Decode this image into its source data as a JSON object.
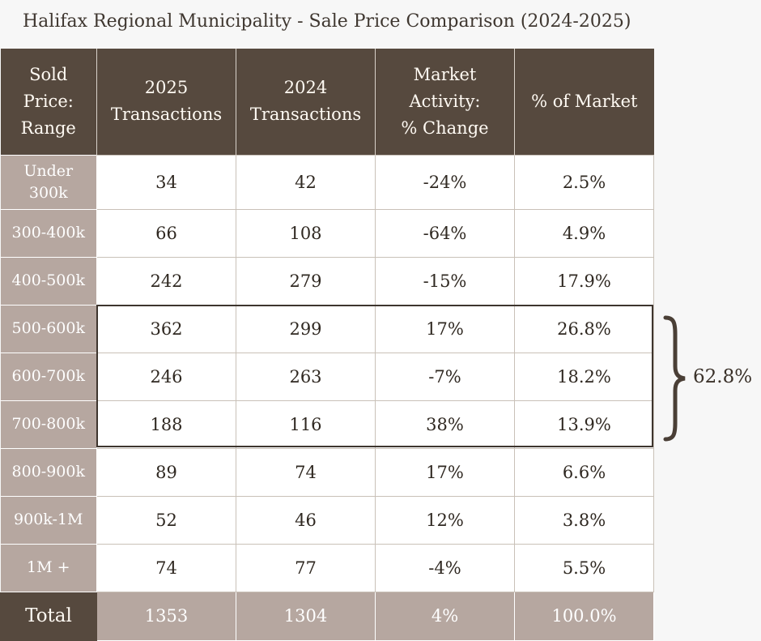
{
  "title": "Halifax Regional Municipality - Sale Price Comparison (2024-2025)",
  "headers": [
    [
      "Sold",
      "Price:",
      "Range"
    ],
    [
      "2025",
      "Transactions"
    ],
    [
      "2024",
      "Transactions"
    ],
    [
      "Market",
      "Activity:",
      "% Change"
    ],
    [
      "% of Market"
    ]
  ],
  "rows": [
    {
      "range": [
        "Under",
        "300k"
      ],
      "y2025": "34",
      "y2024": "42",
      "change": "-24%",
      "share": "2.5%"
    },
    {
      "range": [
        "300-400k"
      ],
      "y2025": "66",
      "y2024": "108",
      "change": "-64%",
      "share": "4.9%"
    },
    {
      "range": [
        "400-500k"
      ],
      "y2025": "242",
      "y2024": "279",
      "change": "-15%",
      "share": "17.9%"
    },
    {
      "range": [
        "500-600k"
      ],
      "y2025": "362",
      "y2024": "299",
      "change": "17%",
      "share": "26.8%"
    },
    {
      "range": [
        "600-700k"
      ],
      "y2025": "246",
      "y2024": "263",
      "change": "-7%",
      "share": "18.2%"
    },
    {
      "range": [
        "700-800k"
      ],
      "y2025": "188",
      "y2024": "116",
      "change": "38%",
      "share": "13.9%"
    },
    {
      "range": [
        "800-900k"
      ],
      "y2025": "89",
      "y2024": "74",
      "change": "17%",
      "share": "6.6%"
    },
    {
      "range": [
        "900k-1M"
      ],
      "y2025": "52",
      "y2024": "46",
      "change": "12%",
      "share": "3.8%"
    },
    {
      "range": [
        "1M +"
      ],
      "y2025": "74",
      "y2024": "77",
      "change": "-4%",
      "share": "5.5%"
    }
  ],
  "total": {
    "label": "Total",
    "y2025": "1353",
    "y2024": "1304",
    "change": "4%",
    "share": "100.0%"
  },
  "highlight": {
    "label": "62.8%"
  },
  "colors": {
    "header_bg": "#56493e",
    "range_bg": "#b6a7a0",
    "cell_bg": "#ffffff",
    "page_bg": "#f7f7f7"
  }
}
